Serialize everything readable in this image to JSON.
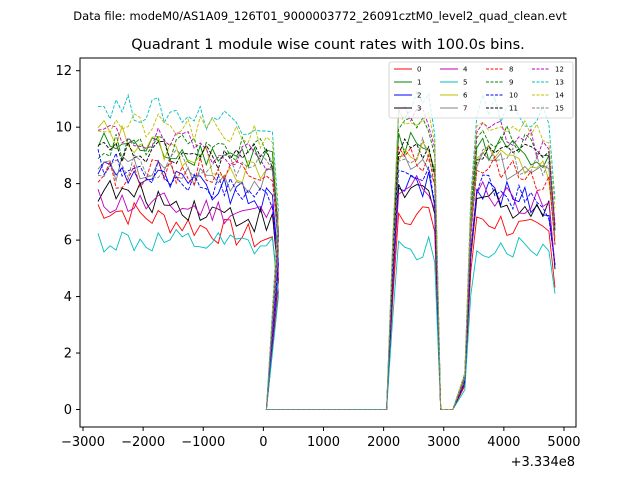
{
  "chart_data": {
    "type": "line",
    "suptitle": "Data file: modeM0/AS1A09_126T01_9000003772_26091cztM0_level2_quad_clean.evt",
    "title": "Quadrant 1 module wise count rates with 100.0s bins.",
    "xlabel": "",
    "ylabel": "",
    "x_offset_label": "+3.334e8",
    "xlim": [
      -3050,
      5200
    ],
    "ylim": [
      -0.62,
      12.45
    ],
    "x_ticks": [
      "−3000",
      "−2000",
      "−1000",
      "0",
      "1000",
      "2000",
      "3000",
      "4000",
      "5000"
    ],
    "x_tick_values": [
      -3000,
      -2000,
      -1000,
      0,
      1000,
      2000,
      3000,
      4000,
      5000
    ],
    "y_ticks": [
      "0",
      "2",
      "4",
      "6",
      "8",
      "10",
      "12"
    ],
    "y_tick_values": [
      0,
      2,
      4,
      6,
      8,
      10,
      12
    ],
    "legend_position": "upper right",
    "segments": [
      {
        "start": -2750,
        "count": 31
      },
      {
        "start": 50,
        "count": 21
      },
      {
        "start": 2150,
        "count": 8
      },
      {
        "start": 2950,
        "count": 3
      },
      {
        "start": 3350,
        "count": 16
      }
    ],
    "series": [
      {
        "name": "0",
        "color": "#ff0000",
        "dash": "solid",
        "levels": [
          7.2,
          5.9,
          7.0,
          6.0
        ]
      },
      {
        "name": "1",
        "color": "#008000",
        "dash": "solid",
        "levels": [
          9.4,
          8.9,
          9.4,
          9.0
        ]
      },
      {
        "name": "2",
        "color": "#0000ff",
        "dash": "solid",
        "levels": [
          8.6,
          7.3,
          8.0,
          7.1
        ]
      },
      {
        "name": "3",
        "color": "#000000",
        "dash": "solid",
        "levels": [
          7.8,
          6.6,
          7.7,
          6.9
        ]
      },
      {
        "name": "4",
        "color": "#bf00bf",
        "dash": "solid",
        "levels": [
          7.4,
          6.9,
          7.9,
          7.1
        ]
      },
      {
        "name": "5",
        "color": "#00bfbf",
        "dash": "solid",
        "levels": [
          6.0,
          5.7,
          5.8,
          5.7
        ]
      },
      {
        "name": "6",
        "color": "#bfbf00",
        "dash": "solid",
        "levels": [
          9.9,
          8.1,
          9.2,
          8.4
        ]
      },
      {
        "name": "7",
        "color": "#808080",
        "dash": "solid",
        "levels": [
          8.6,
          8.0,
          8.9,
          8.1
        ]
      },
      {
        "name": "8",
        "color": "#ff0000",
        "dash": "dashed",
        "levels": [
          8.3,
          8.6,
          8.8,
          8.1
        ]
      },
      {
        "name": "9",
        "color": "#008000",
        "dash": "dashed",
        "levels": [
          9.3,
          9.2,
          10.0,
          9.1
        ]
      },
      {
        "name": "10",
        "color": "#0000ff",
        "dash": "dashed",
        "levels": [
          8.8,
          7.5,
          8.1,
          7.1
        ]
      },
      {
        "name": "11",
        "color": "#000000",
        "dash": "dashed",
        "levels": [
          9.1,
          8.9,
          9.2,
          8.8
        ]
      },
      {
        "name": "12",
        "color": "#bf00bf",
        "dash": "dashed",
        "levels": [
          9.8,
          8.9,
          10.3,
          9.1
        ]
      },
      {
        "name": "13",
        "color": "#00bfbf",
        "dash": "dashed",
        "levels": [
          10.8,
          10.1,
          10.8,
          10.3
        ]
      },
      {
        "name": "14",
        "color": "#bfbf00",
        "dash": "dashed",
        "levels": [
          10.1,
          9.7,
          10.5,
          9.9
        ]
      },
      {
        "name": "15",
        "color": "#808080",
        "dash": "dashed",
        "levels": [
          8.7,
          8.7,
          9.2,
          8.5
        ]
      }
    ]
  }
}
